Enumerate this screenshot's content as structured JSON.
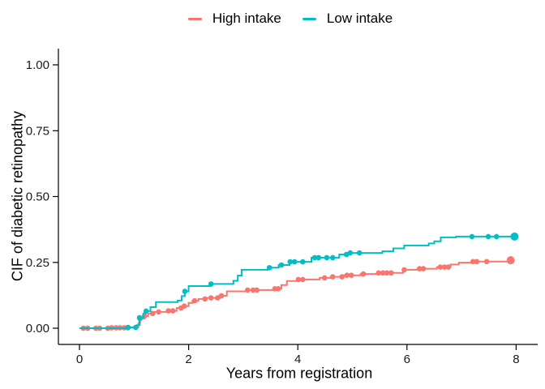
{
  "chart_data": {
    "type": "line",
    "subtype": "step-cumulative-incidence",
    "title": "",
    "xlabel": "Years from registration",
    "ylabel": "CIF of diabetic retinopathy",
    "grid": false,
    "legend_position": "top-center",
    "axis_color": "#000000",
    "tick_text_color": "#1a1a1a",
    "x_axis": {
      "range": [
        0,
        8
      ],
      "ticks": [
        0,
        2,
        4,
        6,
        8
      ],
      "tick_labels": [
        "0",
        "2",
        "4",
        "6",
        "8"
      ]
    },
    "y_axis": {
      "range": [
        0,
        1
      ],
      "ticks": [
        0,
        0.25,
        0.5,
        0.75,
        1
      ],
      "tick_labels": [
        "0.00",
        "0.25",
        "0.50",
        "0.75",
        "1.00"
      ]
    },
    "series": [
      {
        "name": "High intake",
        "color": "#F8766D",
        "steps": [
          [
            0.0,
            0.0
          ],
          [
            0.55,
            0.002
          ],
          [
            0.95,
            0.004
          ],
          [
            1.08,
            0.02
          ],
          [
            1.11,
            0.036
          ],
          [
            1.19,
            0.046
          ],
          [
            1.26,
            0.056
          ],
          [
            1.37,
            0.062
          ],
          [
            1.63,
            0.066
          ],
          [
            1.78,
            0.077
          ],
          [
            1.9,
            0.084
          ],
          [
            2.0,
            0.096
          ],
          [
            2.07,
            0.104
          ],
          [
            2.18,
            0.111
          ],
          [
            2.32,
            0.115
          ],
          [
            2.58,
            0.123
          ],
          [
            2.7,
            0.14
          ],
          [
            3.05,
            0.145
          ],
          [
            3.55,
            0.15
          ],
          [
            3.7,
            0.164
          ],
          [
            3.8,
            0.179
          ],
          [
            4.0,
            0.185
          ],
          [
            4.4,
            0.191
          ],
          [
            4.6,
            0.195
          ],
          [
            4.82,
            0.201
          ],
          [
            5.15,
            0.206
          ],
          [
            5.45,
            0.21
          ],
          [
            5.93,
            0.222
          ],
          [
            6.2,
            0.226
          ],
          [
            6.55,
            0.232
          ],
          [
            6.8,
            0.242
          ],
          [
            6.95,
            0.249
          ],
          [
            7.25,
            0.253
          ],
          [
            7.85,
            0.258
          ],
          [
            7.95,
            0.258
          ]
        ],
        "markers": [
          [
            0.07,
            0.0
          ],
          [
            0.15,
            0.0
          ],
          [
            0.3,
            0.0
          ],
          [
            0.37,
            0.0
          ],
          [
            0.52,
            0.0
          ],
          [
            0.59,
            0.002
          ],
          [
            0.67,
            0.002
          ],
          [
            0.74,
            0.002
          ],
          [
            0.82,
            0.002
          ],
          [
            0.88,
            0.002
          ],
          [
            1.11,
            0.036
          ],
          [
            1.19,
            0.046
          ],
          [
            1.34,
            0.056
          ],
          [
            1.45,
            0.062
          ],
          [
            1.63,
            0.066
          ],
          [
            1.71,
            0.066
          ],
          [
            1.86,
            0.077
          ],
          [
            1.92,
            0.084
          ],
          [
            2.11,
            0.104
          ],
          [
            2.3,
            0.111
          ],
          [
            2.41,
            0.115
          ],
          [
            2.53,
            0.115
          ],
          [
            2.6,
            0.123
          ],
          [
            3.08,
            0.145
          ],
          [
            3.18,
            0.145
          ],
          [
            3.25,
            0.145
          ],
          [
            3.58,
            0.15
          ],
          [
            3.64,
            0.15
          ],
          [
            4.01,
            0.185
          ],
          [
            4.09,
            0.185
          ],
          [
            4.49,
            0.191
          ],
          [
            4.64,
            0.195
          ],
          [
            4.81,
            0.195
          ],
          [
            4.9,
            0.201
          ],
          [
            4.98,
            0.201
          ],
          [
            5.2,
            0.206
          ],
          [
            5.48,
            0.21
          ],
          [
            5.56,
            0.21
          ],
          [
            5.63,
            0.21
          ],
          [
            5.71,
            0.21
          ],
          [
            5.95,
            0.222
          ],
          [
            6.23,
            0.226
          ],
          [
            6.3,
            0.226
          ],
          [
            6.61,
            0.232
          ],
          [
            6.69,
            0.232
          ],
          [
            6.76,
            0.232
          ],
          [
            7.21,
            0.253
          ],
          [
            7.28,
            0.253
          ],
          [
            7.46,
            0.253
          ]
        ],
        "end_marker": [
          7.9,
          0.258
        ]
      },
      {
        "name": "Low intake",
        "color": "#00BFC4",
        "steps": [
          [
            0.0,
            0.0
          ],
          [
            0.85,
            0.003
          ],
          [
            1.05,
            0.012
          ],
          [
            1.1,
            0.04
          ],
          [
            1.17,
            0.056
          ],
          [
            1.22,
            0.065
          ],
          [
            1.3,
            0.08
          ],
          [
            1.4,
            0.099
          ],
          [
            1.8,
            0.105
          ],
          [
            1.87,
            0.122
          ],
          [
            1.93,
            0.14
          ],
          [
            2.0,
            0.16
          ],
          [
            2.4,
            0.168
          ],
          [
            2.82,
            0.18
          ],
          [
            2.9,
            0.2
          ],
          [
            2.97,
            0.222
          ],
          [
            3.45,
            0.23
          ],
          [
            3.65,
            0.24
          ],
          [
            3.85,
            0.252
          ],
          [
            4.25,
            0.268
          ],
          [
            4.76,
            0.28
          ],
          [
            4.93,
            0.286
          ],
          [
            5.55,
            0.292
          ],
          [
            5.75,
            0.303
          ],
          [
            5.95,
            0.314
          ],
          [
            6.4,
            0.322
          ],
          [
            6.5,
            0.33
          ],
          [
            6.62,
            0.345
          ],
          [
            6.9,
            0.348
          ],
          [
            7.97,
            0.348
          ]
        ],
        "markers": [
          [
            0.89,
            0.003
          ],
          [
            1.03,
            0.003
          ],
          [
            1.1,
            0.04
          ],
          [
            1.22,
            0.065
          ],
          [
            1.93,
            0.14
          ],
          [
            2.41,
            0.168
          ],
          [
            3.48,
            0.23
          ],
          [
            3.7,
            0.24
          ],
          [
            3.86,
            0.252
          ],
          [
            3.94,
            0.252
          ],
          [
            4.09,
            0.252
          ],
          [
            4.31,
            0.268
          ],
          [
            4.38,
            0.268
          ],
          [
            4.53,
            0.268
          ],
          [
            4.64,
            0.268
          ],
          [
            4.89,
            0.28
          ],
          [
            4.96,
            0.286
          ],
          [
            5.13,
            0.286
          ],
          [
            7.19,
            0.348
          ],
          [
            7.49,
            0.348
          ],
          [
            7.64,
            0.348
          ]
        ],
        "end_marker": [
          7.97,
          0.348
        ]
      }
    ]
  }
}
